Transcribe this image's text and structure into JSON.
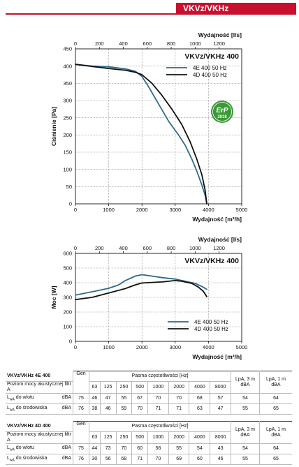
{
  "header": {
    "product": "VKVz/VKHz"
  },
  "chart_data": [
    {
      "type": "line",
      "title": "VKVz/VKHz 400",
      "xlabel": "Wydajność [m³/h]",
      "x2label": "Wydajność [l/s]",
      "ylabel": "Ciśnienie [Pa]",
      "xlim": [
        0,
        5000
      ],
      "x2lim": [
        0,
        1389
      ],
      "ylim": [
        0,
        450
      ],
      "x_ticks": [
        "0",
        "1000",
        "2000",
        "3000",
        "4000",
        "5000"
      ],
      "x2_ticks": [
        "0",
        "200",
        "400",
        "600",
        "800",
        "1000",
        "1200"
      ],
      "y_ticks": [
        "0",
        "50",
        "100",
        "150",
        "200",
        "250",
        "300",
        "350",
        "400",
        "450"
      ],
      "grid": true,
      "legend": "top-right",
      "series": [
        {
          "name": "4E 400 50 Hz",
          "color": "#2f6a8c",
          "x": [
            0,
            500,
            1000,
            1500,
            1800,
            2000,
            2200,
            2500,
            2800,
            3100,
            3300,
            3500,
            3650,
            3800,
            3900,
            3950
          ],
          "y": [
            405,
            400,
            398,
            392,
            385,
            370,
            340,
            290,
            240,
            200,
            170,
            130,
            95,
            55,
            25,
            0
          ]
        },
        {
          "name": "4D 400 50 Hz",
          "color": "#111111",
          "x": [
            0,
            500,
            1000,
            1500,
            1800,
            2000,
            2300,
            2600,
            2900,
            3200,
            3450,
            3650,
            3800,
            3900,
            3950
          ],
          "y": [
            405,
            399,
            393,
            388,
            382,
            375,
            350,
            315,
            275,
            230,
            180,
            130,
            85,
            40,
            0
          ]
        }
      ],
      "badge": {
        "text": "ErP",
        "year": "2018",
        "color": "#3a9a35"
      }
    },
    {
      "type": "line",
      "title": "VKVz/VKHz 400",
      "xlabel": "Wydajność [m³/h]",
      "x2label": "Wydajność [l/s]",
      "ylabel": "Moc [W]",
      "xlim": [
        0,
        5000
      ],
      "x2lim": [
        0,
        1389
      ],
      "ylim": [
        0,
        600
      ],
      "x_ticks": [
        "0",
        "1000",
        "2000",
        "3000",
        "4000",
        "5000"
      ],
      "x2_ticks": [
        "0",
        "200",
        "400",
        "600",
        "800",
        "1000",
        "1200"
      ],
      "y_ticks": [
        "0",
        "100",
        "200",
        "300",
        "400",
        "500",
        "600"
      ],
      "grid": true,
      "legend": "bottom-right",
      "series": [
        {
          "name": "4E 400 50 Hz",
          "color": "#2f6a8c",
          "x": [
            0,
            500,
            1000,
            1300,
            1500,
            1800,
            2000,
            2300,
            2600,
            3000,
            3300,
            3600,
            3800,
            3950
          ],
          "y": [
            315,
            338,
            362,
            385,
            415,
            445,
            455,
            445,
            435,
            425,
            410,
            395,
            375,
            355
          ]
        },
        {
          "name": "4D 400 50 Hz",
          "color": "#111111",
          "x": [
            0,
            500,
            1000,
            1500,
            1800,
            2000,
            2300,
            2600,
            2800,
            3000,
            3200,
            3500,
            3700,
            3850,
            3950
          ],
          "y": [
            285,
            300,
            330,
            360,
            385,
            398,
            402,
            405,
            410,
            415,
            410,
            395,
            370,
            340,
            305
          ]
        }
      ]
    }
  ],
  "tables": [
    {
      "title": "VKVz/VKHz 4E 400",
      "subtitle": "Poziom mocy akustycznej filtr A",
      "gen_header": "Gen",
      "band_header": "Pasma częstotliwości [Hz]",
      "lpa3_header": "LpA, 3 m",
      "lpa1_header": "LpA, 1 m",
      "lpa_unit": "dBA",
      "unit_row": [
        "dBA",
        "63",
        "125",
        "250",
        "500",
        "1000",
        "2000",
        "4000",
        "8000"
      ],
      "rows": [
        {
          "label_main": "L",
          "label_sub": "wA",
          "label_rest": " do wlotu",
          "unit": "dBA",
          "values": [
            "75",
            "46",
            "47",
            "55",
            "67",
            "70",
            "70",
            "68",
            "57",
            "54",
            "64"
          ]
        },
        {
          "label_main": "L",
          "label_sub": "wA",
          "label_rest": " do środowiska",
          "unit": "dBA",
          "values": [
            "76",
            "38",
            "46",
            "59",
            "70",
            "71",
            "71",
            "63",
            "47",
            "55",
            "65"
          ]
        }
      ]
    },
    {
      "title": "VKVz/VKHz 4D 400",
      "subtitle": "Poziom mocy akustycznej filtr A",
      "gen_header": "Gen",
      "band_header": "Pasma częstotliwości [Hz]",
      "lpa3_header": "LpA, 3 m",
      "lpa1_header": "LpA, 1 m",
      "lpa_unit": "dBA",
      "unit_row": [
        "dBA",
        "63",
        "125",
        "250",
        "500",
        "1000",
        "2000",
        "4000",
        "8000"
      ],
      "rows": [
        {
          "label_main": "L",
          "label_sub": "wA",
          "label_rest": " do wlotu",
          "unit": "dBA",
          "values": [
            "75",
            "44",
            "73",
            "70",
            "60",
            "58",
            "55",
            "54",
            "43",
            "54",
            "64"
          ]
        },
        {
          "label_main": "L",
          "label_sub": "wA",
          "label_rest": " do środowiska",
          "unit": "dBA",
          "values": [
            "76",
            "30",
            "56",
            "68",
            "71",
            "70",
            "69",
            "60",
            "46",
            "55",
            "65"
          ]
        }
      ]
    }
  ]
}
